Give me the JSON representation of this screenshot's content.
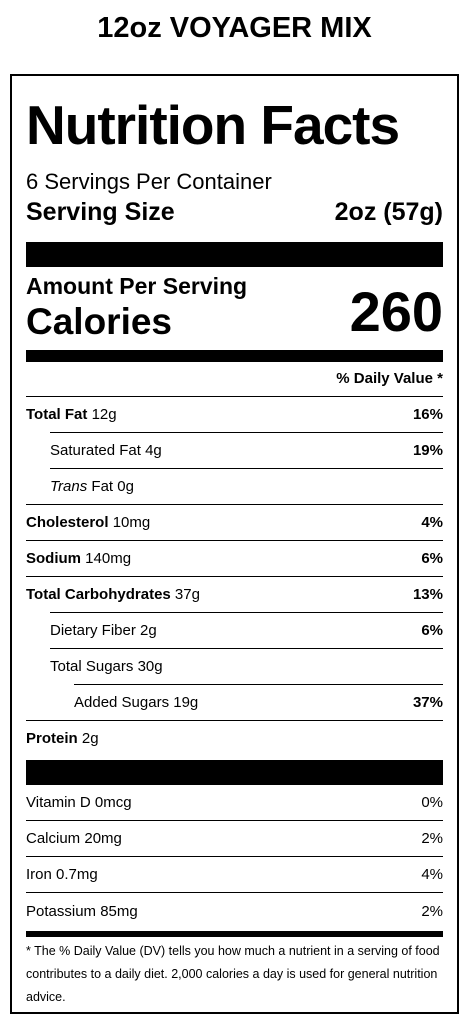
{
  "product": {
    "title": "12oz VOYAGER MIX"
  },
  "label": {
    "title": "Nutrition Facts",
    "servings_per_container": "6 Servings Per Container",
    "serving_size_label": "Serving Size",
    "serving_size_value": "2oz (57g)",
    "amount_per_serving": "Amount Per Serving",
    "calories_label": "Calories",
    "calories_value": "260",
    "daily_value_header": "% Daily Value *"
  },
  "nutrients": [
    {
      "name": "Total Fat",
      "amount": "12g",
      "dv": "16%"
    },
    {
      "name": "Saturated Fat",
      "amount": "4g",
      "dv": "19%"
    },
    {
      "name_italic": "Trans",
      "name": "Fat",
      "amount": "0g",
      "dv": ""
    },
    {
      "name": "Cholesterol",
      "amount": "10mg",
      "dv": "4%"
    },
    {
      "name": "Sodium",
      "amount": "140mg",
      "dv": "6%"
    },
    {
      "name": "Total Carbohydrates",
      "amount": "37g",
      "dv": "13%"
    },
    {
      "name": "Dietary Fiber",
      "amount": "2g",
      "dv": "6%"
    },
    {
      "name": "Total Sugars",
      "amount": "30g",
      "dv": ""
    },
    {
      "name": "Added Sugars",
      "amount": "19g",
      "dv": "37%"
    },
    {
      "name": "Protein",
      "amount": "2g",
      "dv": ""
    }
  ],
  "vitamins": [
    {
      "name": "Vitamin D",
      "amount": "0mcg",
      "dv": "0%"
    },
    {
      "name": "Calcium",
      "amount": "20mg",
      "dv": "2%"
    },
    {
      "name": "Iron",
      "amount": "0.7mg",
      "dv": "4%"
    },
    {
      "name": "Potassium",
      "amount": "85mg",
      "dv": "2%"
    }
  ],
  "footnote": "* The % Daily Value (DV) tells you how much a nutrient in a serving of food contributes to a daily diet. 2,000 calories a day is used for general nutrition advice."
}
